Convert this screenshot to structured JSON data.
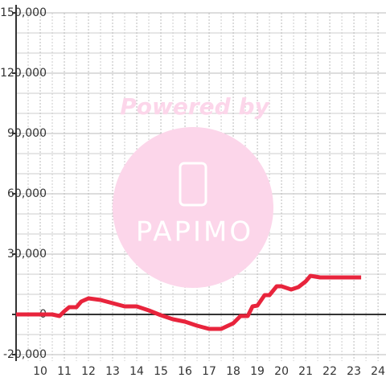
{
  "chart_data": {
    "type": "line",
    "watermark": {
      "title": "Powered by",
      "logo": "PAPIMO"
    },
    "x": [
      9,
      10,
      10.5,
      10.8,
      11,
      11.2,
      11.5,
      11.7,
      12,
      12.5,
      13,
      13.5,
      14,
      14.5,
      15,
      15.5,
      16,
      16.5,
      17,
      17.5,
      18,
      18.3,
      18.6,
      18.8,
      19,
      19.3,
      19.5,
      19.8,
      20,
      20.4,
      20.7,
      21,
      21.2,
      21.6,
      22,
      23.3
    ],
    "series": [
      {
        "color": "#e8243c",
        "values": [
          0,
          0,
          0,
          -800,
          1600,
          3600,
          3600,
          6400,
          8000,
          7200,
          5600,
          4000,
          4000,
          2000,
          -400,
          -2400,
          -3600,
          -5600,
          -7200,
          -7200,
          -4400,
          -800,
          -800,
          4000,
          4400,
          9600,
          9600,
          14000,
          14000,
          12400,
          13600,
          16400,
          19200,
          18400,
          18400,
          18400
        ]
      }
    ],
    "xlim": [
      9,
      24.33
    ],
    "xticks": [
      10,
      11,
      12,
      13,
      14,
      15,
      16,
      17,
      18,
      19,
      20,
      21,
      22,
      23,
      24
    ],
    "xminor": [
      9.5,
      10.5,
      11.5,
      12.5,
      13.5,
      14.5,
      15.5,
      16.5,
      17.5,
      18.5,
      19.5,
      20.5,
      21.5,
      22.5,
      23.5
    ],
    "ylim": [
      -20000,
      150000
    ],
    "yticks": [
      {
        "value": -20000,
        "label": "-20,000"
      },
      0,
      {
        "value": 30000,
        "label": "30,000"
      },
      {
        "value": 60000,
        "label": "60,000"
      },
      {
        "value": 90000,
        "label": "90,000"
      },
      {
        "value": 120000,
        "label": "120,000"
      },
      {
        "value": 150000,
        "label": "150,000"
      }
    ],
    "yminor": [
      -10000,
      10000,
      20000,
      40000,
      50000,
      70000,
      80000,
      100000,
      110000,
      130000,
      140000
    ],
    "grid": true
  }
}
